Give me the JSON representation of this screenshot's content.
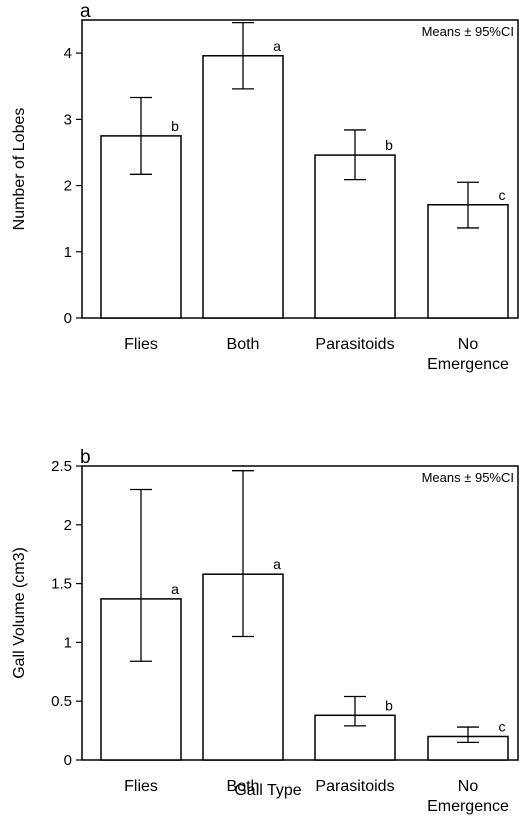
{
  "chart_data": [
    {
      "type": "bar",
      "panel_label": "a",
      "annotation": "Means ± 95%CI",
      "ylabel": "Number of Lobes",
      "ylim": [
        0,
        4.5
      ],
      "yticks": [
        0,
        1,
        2,
        3,
        4
      ],
      "ytick_labels": [
        "0",
        "1",
        "2",
        "3",
        "4"
      ],
      "categories": [
        "Flies",
        "Both",
        "Parasitoids",
        "No Emergence"
      ],
      "category_lines": [
        [
          "Flies"
        ],
        [
          "Both"
        ],
        [
          "Parasitoids"
        ],
        [
          "No",
          "Emergence"
        ]
      ],
      "values": [
        2.75,
        3.96,
        2.46,
        1.71
      ],
      "ci_low": [
        2.17,
        3.46,
        2.09,
        1.36
      ],
      "ci_high": [
        3.33,
        4.46,
        2.84,
        2.05
      ],
      "letters": [
        "b",
        "a",
        "b",
        "c"
      ]
    },
    {
      "type": "bar",
      "panel_label": "b",
      "annotation": "Means ± 95%CI",
      "ylabel": "Gall Volume (cm3)",
      "xlabel": "Gall Type",
      "ylim": [
        0,
        2.5
      ],
      "yticks": [
        0,
        0.5,
        1,
        1.5,
        2,
        2.5
      ],
      "ytick_labels": [
        "0",
        "0.5",
        "1",
        "1.5",
        "2",
        "2.5"
      ],
      "categories": [
        "Flies",
        "Both",
        "Parasitoids",
        "No Emergence"
      ],
      "category_lines": [
        [
          "Flies"
        ],
        [
          "Both"
        ],
        [
          "Parasitoids"
        ],
        [
          "No",
          "Emergence"
        ]
      ],
      "values": [
        1.37,
        1.58,
        0.38,
        0.2
      ],
      "ci_low": [
        0.84,
        1.05,
        0.29,
        0.15
      ],
      "ci_high": [
        2.3,
        2.46,
        0.54,
        0.28
      ],
      "letters": [
        "a",
        "a",
        "b",
        "c"
      ]
    }
  ]
}
